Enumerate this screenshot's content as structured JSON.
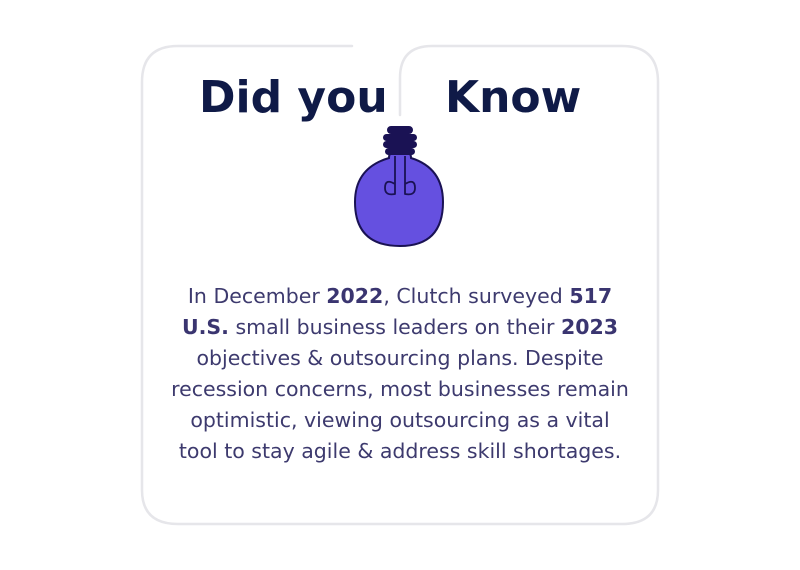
{
  "card": {
    "title_left": "Did you",
    "title_right": "Know",
    "icon": "lightbulb-icon",
    "colors": {
      "title": "#0f1a47",
      "text": "#3d3a6e",
      "bulb_fill": "#6550e0",
      "bulb_outline": "#1a1254",
      "border": "#e6e6ea"
    },
    "body": {
      "t1": "In December ",
      "b1": "2022",
      "t2": ", Clutch surveyed ",
      "b2": "517 U.S.",
      "t3": " small business leaders on their ",
      "b3": "2023",
      "t4": " objectives & outsourcing plans. Despite recession concerns, most businesses remain optimistic, viewing outsourcing as a vital tool to stay agile & address skill shortages."
    }
  }
}
